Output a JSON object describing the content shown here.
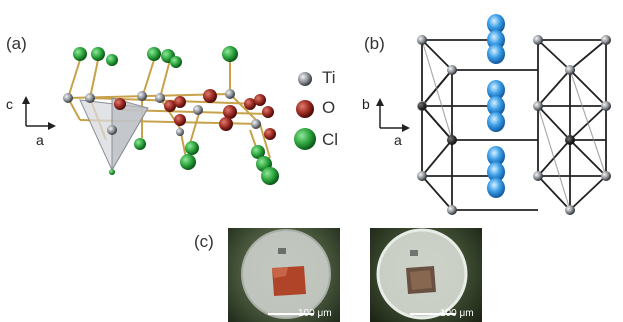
{
  "figure": {
    "panel_a": {
      "label": "(a)",
      "axes": {
        "vertical": "c",
        "horizontal": "a"
      },
      "legend": [
        {
          "symbol": "ti-atom-icon",
          "label": "Ti",
          "color": "#8a8f96"
        },
        {
          "symbol": "o-atom-icon",
          "label": "O",
          "color": "#9a2a22"
        },
        {
          "symbol": "cl-atom-icon",
          "label": "Cl",
          "color": "#2aa23a"
        }
      ]
    },
    "panel_b": {
      "label": "(b)",
      "axes": {
        "vertical": "b",
        "horizontal": "a"
      }
    },
    "panel_c": {
      "label": "(c)",
      "photo_left": {
        "scale_bar": "100 μm"
      },
      "photo_right": {
        "scale_bar": "100 μm"
      }
    }
  },
  "colors": {
    "ti": "#8a8f96",
    "o": "#9a2a22",
    "cl": "#2aa23a",
    "bond": "#c8a24a",
    "orbital": "#3da0e8"
  }
}
